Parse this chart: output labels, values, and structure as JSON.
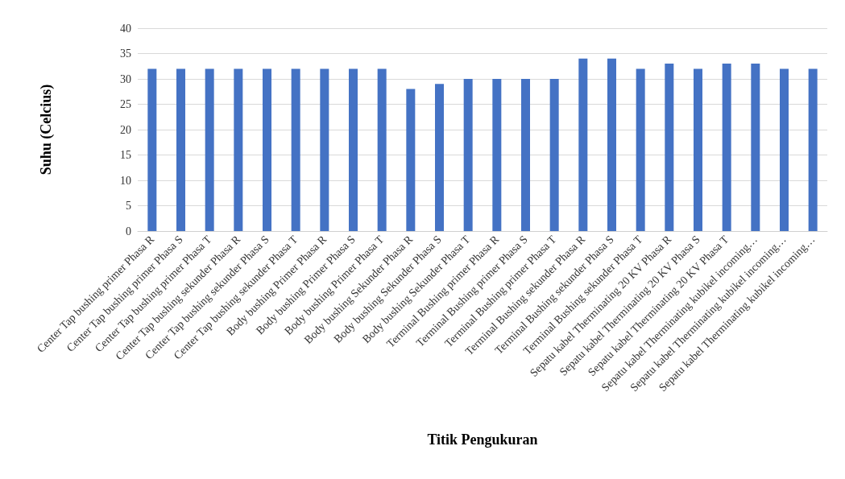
{
  "chart_data": {
    "type": "bar",
    "xlabel": "Titik Pengukuran",
    "ylabel": "Suhu (Celcius)",
    "categories": [
      "Center Tap bushing primer Phasa R",
      "Center Tap bushing primer Phasa S",
      "Center Tap bushing primer Phasa T",
      "Center Tap bushing sekunder Phasa R",
      "Center Tap bushing sekunder Phasa S",
      "Center Tap bushing sekunder Phasa T",
      "Body bushing Primer Phasa R",
      "Body bushing Primer Phasa S",
      "Body bushing Primer Phasa T",
      "Body bushing Sekunder Phasa R",
      "Body bushing Sekunder Phasa S",
      "Body bushing Sekunder Phasa T",
      "Terminal Bushing primer Phasa R",
      "Terminal Bushing primer Phasa S",
      "Terminal Bushing primer Phasa T",
      "Terminal Bushing sekunder Phasa R",
      "Terminal Bushing sekunder Phasa S",
      "Terminal Bushing sekunder Phasa T",
      "Sepatu kabel Therminating 20 KV Phasa R",
      "Sepatu kabel Therminating 20 KV Phasa S",
      "Sepatu kabel Therminating 20 KV Phasa T",
      "Sepatu kabel Therminating kubikel incoming…",
      "Sepatu kabel Therminating kubikel incoming…",
      "Sepatu kabel Therminating kubikel incoming…"
    ],
    "values": [
      32,
      32,
      32,
      32,
      32,
      32,
      32,
      32,
      32,
      28,
      29,
      30,
      30,
      30,
      30,
      34,
      34,
      32,
      33,
      32,
      33,
      33,
      32,
      32
    ],
    "color": "#4472c4",
    "ylim": [
      0,
      40
    ],
    "yticks": [
      0,
      5,
      10,
      15,
      20,
      25,
      30,
      35,
      40
    ],
    "grid": "y"
  }
}
